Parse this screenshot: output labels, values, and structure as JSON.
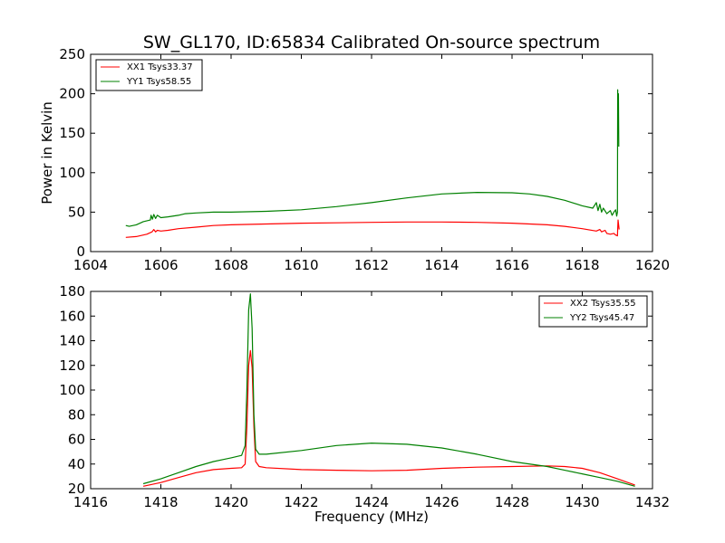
{
  "colors": {
    "red": "#ff0000",
    "green": "#008000",
    "frame": "#000000"
  },
  "chart_data": [
    {
      "type": "line",
      "title": "SW_GL170, ID:65834 Calibrated On-source spectrum",
      "xlabel": "",
      "ylabel": "Power in Kelvin",
      "xlim": [
        1604,
        1620
      ],
      "ylim": [
        0,
        250
      ],
      "xticks": [
        1604,
        1606,
        1608,
        1610,
        1612,
        1614,
        1616,
        1618,
        1620
      ],
      "yticks": [
        0,
        50,
        100,
        150,
        200,
        250
      ],
      "legend_position": "top-left",
      "series": [
        {
          "name": "XX1 Tsys33.37",
          "color": "#ff0000",
          "points": [
            [
              1605.0,
              18
            ],
            [
              1605.3,
              19
            ],
            [
              1605.6,
              22
            ],
            [
              1605.75,
              25
            ],
            [
              1605.8,
              28
            ],
            [
              1605.85,
              25
            ],
            [
              1605.9,
              27
            ],
            [
              1606.0,
              26
            ],
            [
              1606.2,
              27
            ],
            [
              1606.5,
              29
            ],
            [
              1607.0,
              31
            ],
            [
              1607.5,
              33
            ],
            [
              1608.0,
              34
            ],
            [
              1609.0,
              35
            ],
            [
              1610.0,
              36
            ],
            [
              1611.0,
              36.5
            ],
            [
              1612.0,
              37
            ],
            [
              1613.0,
              37.5
            ],
            [
              1614.0,
              37.5
            ],
            [
              1615.0,
              37
            ],
            [
              1616.0,
              36
            ],
            [
              1616.5,
              35
            ],
            [
              1617.0,
              34
            ],
            [
              1617.5,
              32
            ],
            [
              1618.0,
              29
            ],
            [
              1618.4,
              26
            ],
            [
              1618.5,
              28
            ],
            [
              1618.55,
              25
            ],
            [
              1618.65,
              27
            ],
            [
              1618.7,
              23
            ],
            [
              1618.8,
              22
            ],
            [
              1618.9,
              23
            ],
            [
              1618.95,
              21
            ],
            [
              1619.0,
              20
            ],
            [
              1619.02,
              40
            ],
            [
              1619.05,
              28
            ]
          ]
        },
        {
          "name": "YY1 Tsys58.55",
          "color": "#008000",
          "points": [
            [
              1605.0,
              33
            ],
            [
              1605.1,
              32
            ],
            [
              1605.3,
              34
            ],
            [
              1605.5,
              38
            ],
            [
              1605.7,
              40
            ],
            [
              1605.72,
              46
            ],
            [
              1605.76,
              41
            ],
            [
              1605.8,
              47
            ],
            [
              1605.85,
              42
            ],
            [
              1605.9,
              46
            ],
            [
              1606.0,
              43
            ],
            [
              1606.2,
              44
            ],
            [
              1606.5,
              46
            ],
            [
              1606.7,
              48
            ],
            [
              1607.0,
              49
            ],
            [
              1607.5,
              50
            ],
            [
              1608.0,
              50
            ],
            [
              1609.0,
              51
            ],
            [
              1610.0,
              53
            ],
            [
              1611.0,
              57
            ],
            [
              1612.0,
              62
            ],
            [
              1613.0,
              68
            ],
            [
              1614.0,
              73
            ],
            [
              1615.0,
              75
            ],
            [
              1616.0,
              74.5
            ],
            [
              1616.5,
              73
            ],
            [
              1617.0,
              70
            ],
            [
              1617.5,
              65
            ],
            [
              1618.0,
              58
            ],
            [
              1618.3,
              55
            ],
            [
              1618.4,
              62
            ],
            [
              1618.45,
              52
            ],
            [
              1618.5,
              60
            ],
            [
              1618.55,
              50
            ],
            [
              1618.6,
              55
            ],
            [
              1618.7,
              48
            ],
            [
              1618.8,
              52
            ],
            [
              1618.85,
              46
            ],
            [
              1618.9,
              50
            ],
            [
              1618.95,
              53
            ],
            [
              1618.98,
              45
            ],
            [
              1619.0,
              50
            ],
            [
              1619.01,
              205
            ],
            [
              1619.02,
              150
            ],
            [
              1619.03,
              200
            ],
            [
              1619.04,
              133
            ]
          ]
        }
      ]
    },
    {
      "type": "line",
      "title": "",
      "xlabel": "Frequency (MHz)",
      "ylabel": "",
      "xlim": [
        1416,
        1432
      ],
      "ylim": [
        20,
        180
      ],
      "xticks": [
        1416,
        1418,
        1420,
        1422,
        1424,
        1426,
        1428,
        1430,
        1432
      ],
      "yticks": [
        20,
        40,
        60,
        80,
        100,
        120,
        140,
        160,
        180
      ],
      "legend_position": "top-right",
      "series": [
        {
          "name": "XX2 Tsys35.55",
          "color": "#ff0000",
          "points": [
            [
              1417.5,
              22
            ],
            [
              1418.0,
              25
            ],
            [
              1418.5,
              29
            ],
            [
              1419.0,
              33
            ],
            [
              1419.5,
              35.5
            ],
            [
              1420.0,
              36.5
            ],
            [
              1420.3,
              37
            ],
            [
              1420.4,
              40
            ],
            [
              1420.45,
              70
            ],
            [
              1420.5,
              120
            ],
            [
              1420.55,
              132
            ],
            [
              1420.6,
              118
            ],
            [
              1420.65,
              70
            ],
            [
              1420.7,
              42
            ],
            [
              1420.8,
              38
            ],
            [
              1421.0,
              37
            ],
            [
              1422.0,
              35.5
            ],
            [
              1423.0,
              35
            ],
            [
              1424.0,
              34.5
            ],
            [
              1425.0,
              35
            ],
            [
              1426.0,
              36.5
            ],
            [
              1427.0,
              37.5
            ],
            [
              1428.0,
              38
            ],
            [
              1429.0,
              38.5
            ],
            [
              1429.5,
              38
            ],
            [
              1430.0,
              36.5
            ],
            [
              1430.5,
              33
            ],
            [
              1431.0,
              28
            ],
            [
              1431.5,
              23
            ]
          ]
        },
        {
          "name": "YY2 Tsys45.47",
          "color": "#008000",
          "points": [
            [
              1417.5,
              24
            ],
            [
              1418.0,
              28
            ],
            [
              1418.5,
              33
            ],
            [
              1419.0,
              38
            ],
            [
              1419.5,
              42
            ],
            [
              1420.0,
              45
            ],
            [
              1420.3,
              47
            ],
            [
              1420.4,
              55
            ],
            [
              1420.45,
              100
            ],
            [
              1420.5,
              165
            ],
            [
              1420.55,
              178
            ],
            [
              1420.6,
              150
            ],
            [
              1420.65,
              80
            ],
            [
              1420.7,
              52
            ],
            [
              1420.8,
              48
            ],
            [
              1421.0,
              48
            ],
            [
              1422.0,
              51
            ],
            [
              1423.0,
              55
            ],
            [
              1424.0,
              57
            ],
            [
              1425.0,
              56
            ],
            [
              1426.0,
              53
            ],
            [
              1427.0,
              48
            ],
            [
              1428.0,
              42
            ],
            [
              1429.0,
              38
            ],
            [
              1429.5,
              35
            ],
            [
              1430.0,
              32
            ],
            [
              1430.5,
              29
            ],
            [
              1431.0,
              26
            ],
            [
              1431.5,
              22
            ]
          ]
        }
      ]
    }
  ]
}
